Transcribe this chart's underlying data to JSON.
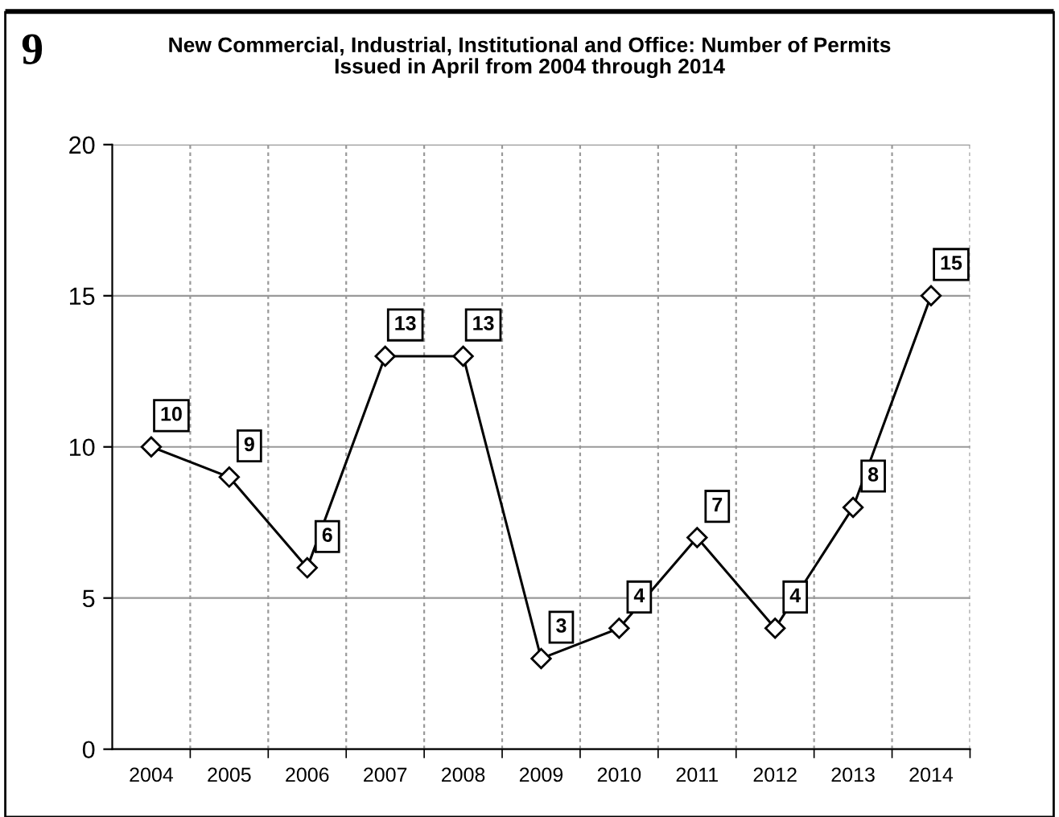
{
  "chart_data": {
    "type": "line",
    "title": "New Commercial, Industrial, Institutional and Office: Number of Permits\nIssued in April from 2004 through 2014",
    "annotations": [
      "9"
    ],
    "categories": [
      "2004",
      "2005",
      "2006",
      "2007",
      "2008",
      "2009",
      "2010",
      "2011",
      "2012",
      "2013",
      "2014"
    ],
    "series": [
      {
        "color": "#000000",
        "values": [
          10,
          9,
          6,
          13,
          13,
          3,
          4,
          7,
          4,
          8,
          15
        ]
      }
    ],
    "ylim": [
      0,
      20
    ],
    "yticks": [
      0,
      5,
      10,
      15,
      20
    ],
    "grid": true,
    "marker": "diamond",
    "line_style": "solid",
    "data_labels": true
  }
}
